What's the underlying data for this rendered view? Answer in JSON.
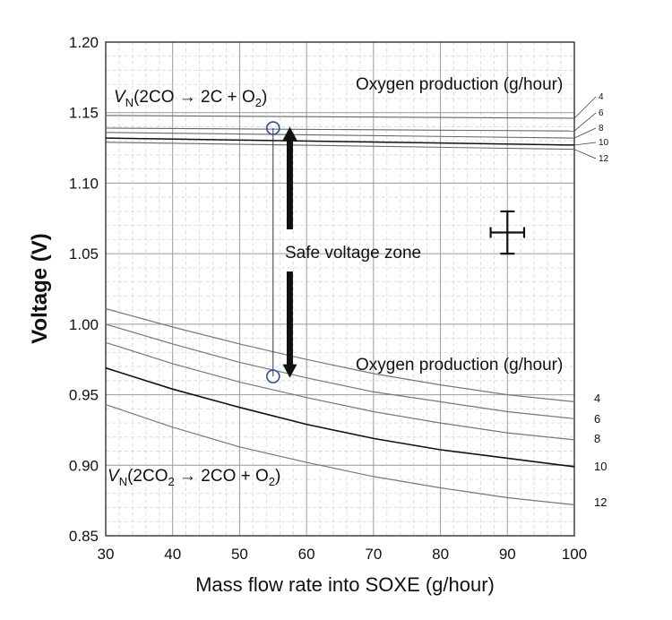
{
  "chart_data": {
    "type": "line",
    "xlabel": "Mass flow rate into SOXE (g/hour)",
    "ylabel": "Voltage (V)",
    "xlim": [
      30,
      100
    ],
    "ylim": [
      0.85,
      1.2
    ],
    "xticks": [
      "30",
      "40",
      "50",
      "60",
      "70",
      "80",
      "90",
      "100"
    ],
    "yticks": [
      "0.85",
      "0.90",
      "0.95",
      "1.00",
      "1.05",
      "1.10",
      "1.15",
      "1.20"
    ],
    "grid": true,
    "upper_label": {
      "italic": "V",
      "sub": "N",
      "rest1": "(2CO ",
      "arrow": "→",
      "rest2": " 2C + O",
      "o_sub": "2",
      "close": ")"
    },
    "lower_label": {
      "italic": "V",
      "sub": "N",
      "rest1": "(2CO",
      "co2_sub": "2",
      "arrow": " → ",
      "rest2": "2CO + O",
      "o_sub": "2",
      "close": ")"
    },
    "upper_group_title": "Oxygen production (g/hour)",
    "lower_group_title": "Oxygen production (g/hour)",
    "safe_zone_label": "Safe voltage zone",
    "upper_series": [
      {
        "name": "4",
        "x": [
          30,
          100
        ],
        "y": [
          1.148,
          1.146
        ]
      },
      {
        "name": "6",
        "x": [
          30,
          100
        ],
        "y": [
          1.139,
          1.137
        ]
      },
      {
        "name": "8",
        "x": [
          30,
          100
        ],
        "y": [
          1.136,
          1.132
        ]
      },
      {
        "name": "10",
        "x": [
          30,
          100
        ],
        "y": [
          1.132,
          1.127
        ]
      },
      {
        "name": "12",
        "x": [
          30,
          100
        ],
        "y": [
          1.129,
          1.124
        ]
      }
    ],
    "lower_series": [
      {
        "name": "4",
        "x": [
          30,
          40,
          50,
          60,
          70,
          80,
          90,
          100
        ],
        "y": [
          1.011,
          0.998,
          0.986,
          0.975,
          0.965,
          0.957,
          0.95,
          0.945
        ]
      },
      {
        "name": "6",
        "x": [
          30,
          40,
          50,
          60,
          70,
          80,
          90,
          100
        ],
        "y": [
          1.0,
          0.986,
          0.973,
          0.962,
          0.952,
          0.945,
          0.938,
          0.933
        ]
      },
      {
        "name": "8",
        "x": [
          30,
          40,
          50,
          60,
          70,
          80,
          90,
          100
        ],
        "y": [
          0.987,
          0.972,
          0.959,
          0.948,
          0.938,
          0.93,
          0.923,
          0.918
        ]
      },
      {
        "name": "10",
        "x": [
          30,
          40,
          50,
          60,
          70,
          80,
          90,
          100
        ],
        "y": [
          0.969,
          0.954,
          0.941,
          0.929,
          0.919,
          0.911,
          0.905,
          0.899
        ]
      },
      {
        "name": "12",
        "x": [
          30,
          40,
          50,
          60,
          70,
          80,
          90,
          100
        ],
        "y": [
          0.943,
          0.927,
          0.913,
          0.902,
          0.892,
          0.884,
          0.877,
          0.872
        ]
      }
    ],
    "marker_points": [
      {
        "x": 55,
        "y": 1.139
      },
      {
        "x": 55,
        "y": 0.963
      }
    ],
    "safe_zone": {
      "x": 57.5,
      "y_low": 0.962,
      "y_high": 1.14
    },
    "error_bar": {
      "x": 90,
      "y": 1.065,
      "x_err": 2.5,
      "y_err": 0.015
    }
  }
}
